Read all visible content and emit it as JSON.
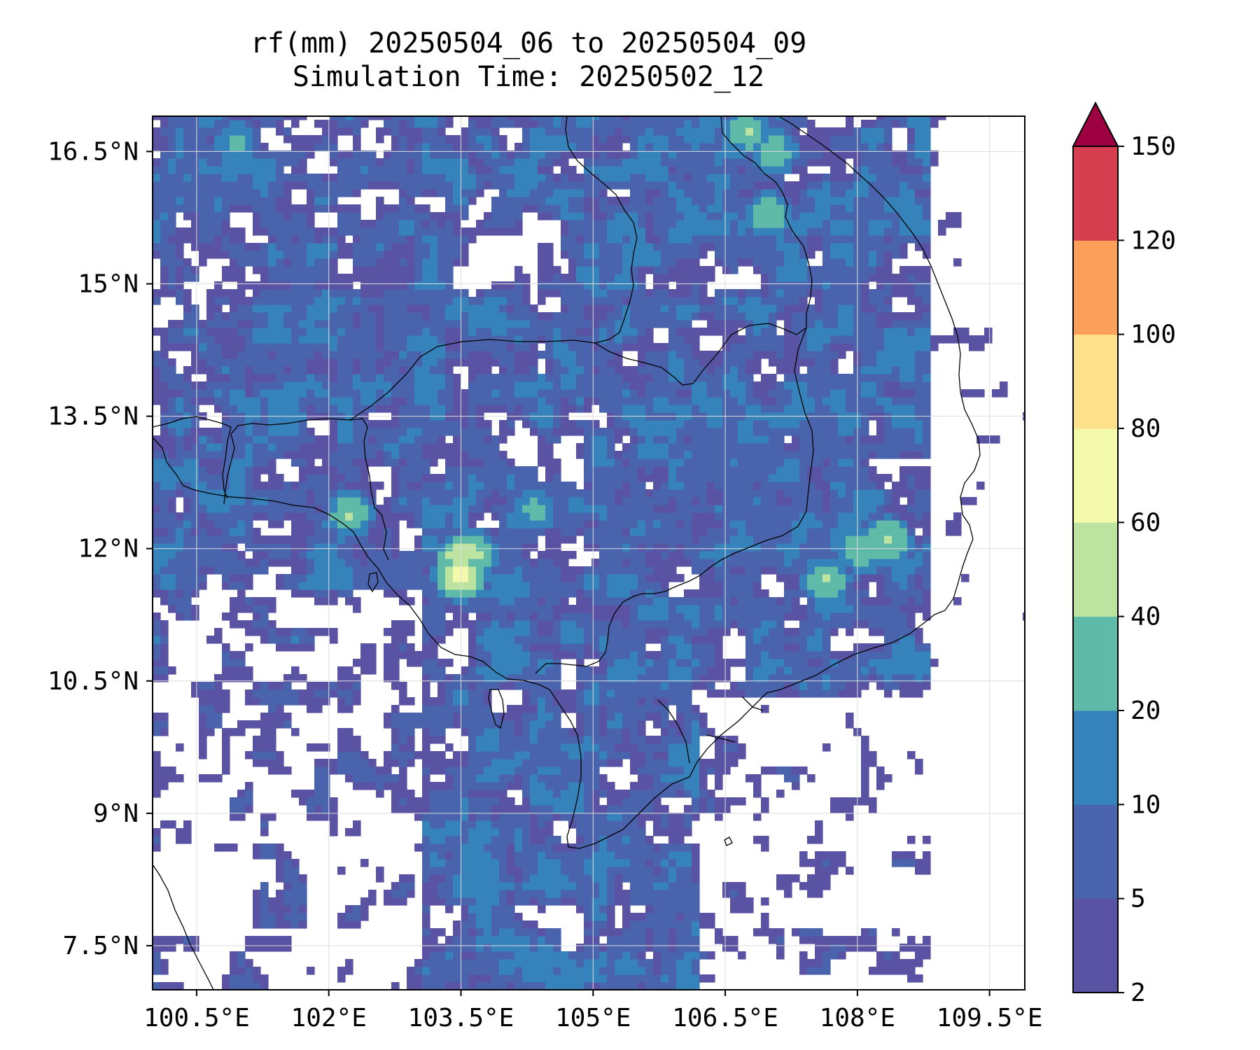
{
  "title_line1": "rf(mm) 20250504_06 to 20250504_09",
  "title_line2": "Simulation Time: 20250502_12",
  "map": {
    "lon_range": [
      100.0,
      109.9
    ],
    "lat_range": [
      7.0,
      16.9
    ],
    "lon_ticks": [
      "100.5°E",
      "102°E",
      "103.5°E",
      "105°E",
      "106.5°E",
      "108°E",
      "109.5°E"
    ],
    "lon_tick_values": [
      100.5,
      102,
      103.5,
      105,
      106.5,
      108,
      109.5
    ],
    "lat_ticks": [
      "16.5°N",
      "15°N",
      "13.5°N",
      "12°N",
      "10.5°N",
      "9°N",
      "7.5°N"
    ],
    "lat_tick_values": [
      16.5,
      15,
      13.5,
      12,
      10.5,
      9,
      7.5
    ],
    "gridlines": true,
    "hotspots": [
      {
        "lon": 103.45,
        "lat": 11.65,
        "value": 90
      },
      {
        "lon": 103.45,
        "lat": 11.85,
        "value": 65
      },
      {
        "lon": 103.6,
        "lat": 11.9,
        "value": 55
      },
      {
        "lon": 102.2,
        "lat": 12.35,
        "value": 45
      },
      {
        "lon": 108.3,
        "lat": 12.05,
        "value": 50
      },
      {
        "lon": 108.0,
        "lat": 11.95,
        "value": 45
      },
      {
        "lon": 107.6,
        "lat": 11.6,
        "value": 45
      },
      {
        "lon": 106.7,
        "lat": 16.7,
        "value": 45
      },
      {
        "lon": 107.0,
        "lat": 16.45,
        "value": 40
      },
      {
        "lon": 106.95,
        "lat": 15.75,
        "value": 40
      },
      {
        "lon": 100.9,
        "lat": 16.55,
        "value": 30
      },
      {
        "lon": 104.3,
        "lat": 12.4,
        "value": 30
      }
    ]
  },
  "colorbar": {
    "levels": [
      2,
      5,
      10,
      20,
      40,
      60,
      80,
      100,
      120,
      150
    ],
    "tick_labels": [
      "2",
      "5",
      "10",
      "20",
      "40",
      "60",
      "80",
      "100",
      "120",
      "150"
    ],
    "colors": [
      "#5a52a3",
      "#4a63ad",
      "#3682ba",
      "#5fbaa8",
      "#bde3a0",
      "#f2f9aa",
      "#fde08b",
      "#fba05b",
      "#d63f4f"
    ],
    "extend_color": "#9e0142",
    "extend": "max"
  }
}
